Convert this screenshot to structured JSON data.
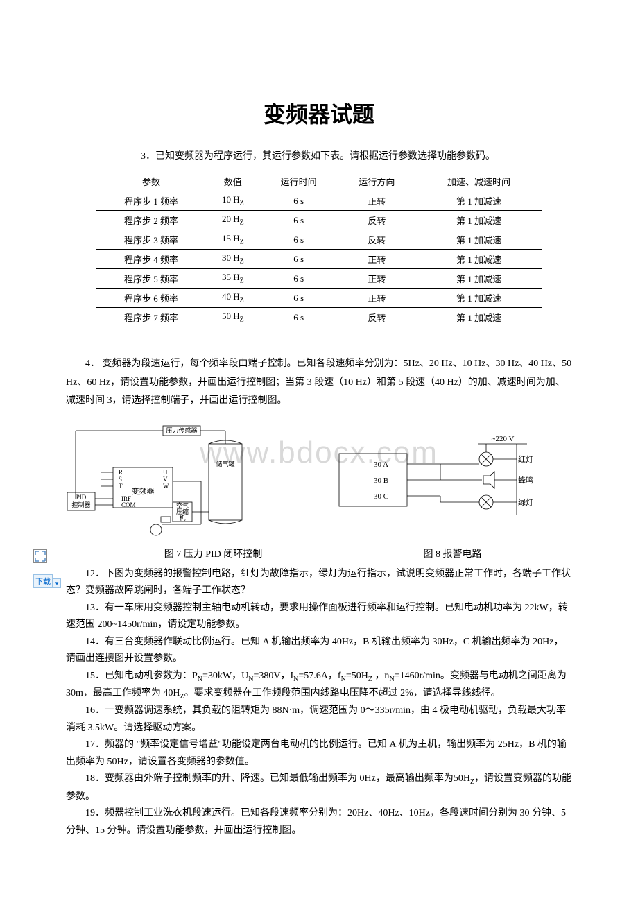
{
  "title": "变频器试题",
  "intro": "3．已知变频器为程序运行，其运行参数如下表。请根据运行参数选择功能参数码。",
  "table": {
    "headers": [
      "参数",
      "数值",
      "运行时间",
      "运行方向",
      "加速、减速时间"
    ],
    "rows": [
      [
        "程序步 1 频率",
        "10 Hz",
        "6 s",
        "正转",
        "第 1 加减速"
      ],
      [
        "程序步 2 频率",
        "20 Hz",
        "6 s",
        "反转",
        "第 1 加减速"
      ],
      [
        "程序步 3 频率",
        "15 Hz",
        "6 s",
        "反转",
        "第 1 加减速"
      ],
      [
        "程序步 4 频率",
        "30 Hz",
        "6 s",
        "正转",
        "第 1 加减速"
      ],
      [
        "程序步 5 频率",
        "35 Hz",
        "6 s",
        "正转",
        "第 1 加减速"
      ],
      [
        "程序步 6 频率",
        "40 Hz",
        "6 s",
        "正转",
        "第 1 加减速"
      ],
      [
        "程序步 7 频率",
        "50 Hz",
        "6 s",
        "反转",
        "第 1 加减速"
      ]
    ]
  },
  "q4": "4．  变频器为段速运行，每个频率段由端子控制。已知各段速频率分别为：5Hz、20 Hz、10 Hz、30 Hz、40 Hz、50 Hz、60 Hz，请设置功能参数，并画出运行控制图；当第 3 段速（10 Hz）和第 5 段速（40 Hz）的加、减速时间为加、减速时间 3，请选择控制端子，并画出运行控制图。",
  "watermark": "www.bdocx.com",
  "fig7": {
    "caption": "图 7  压力 PID 闭环控制",
    "labels": {
      "sensor": "压力传感器",
      "tank": "储气罐",
      "r": "R",
      "s": "S",
      "t": "T",
      "u": "U",
      "v": "V",
      "w": "W",
      "pid1": "PID",
      "pid2": "控制器",
      "vfd": "变频器",
      "irf": "IRF",
      "com": "COM",
      "comp1": "空气",
      "comp2": "压缩",
      "comp3": "机",
      "m": "M"
    }
  },
  "fig8": {
    "caption": "图 8    报警电路",
    "labels": {
      "v220": "~220 V",
      "red": "红灯",
      "buzz": "蜂鸣",
      "green": "绿灯",
      "t30a": "30 A",
      "t30b": "30 B",
      "t30c": "30 C"
    }
  },
  "questions": {
    "q12": "12．下图为变频器的报警控制电路，红灯为故障指示，绿灯为运行指示，试说明变频器正常工作时，各端子工作状态？变频器故障跳闸时，各端子工作状态？",
    "q13": "13．有一车床用变频器控制主轴电动机转动，要求用操作面板进行频率和运行控制。已知电动机功率为 22kW，转速范围 200~1450r/min，请设定功能参数。",
    "q14": "14．有三台变频器作联动比例运行。已知 A 机输出频率为 40Hz，B 机输出频率为 30Hz，C 机输出频率为 20Hz，请画出连接图并设置参数。",
    "q15a": "15．已知电动机参数为：P",
    "q15b": "=30kW，U",
    "q15c": "=380V，I",
    "q15d": "=57.6A，f",
    "q15e": "=50H",
    "q15f": " ，n",
    "q15g": "=1460r/min。变频器与电动机之间距离为 30m，最高工作频率为 40H",
    "q15h": "。要求变频器在工作频段范围内线路电压降不超过 2%，请选择导线线径。",
    "q16": "16．一变频器调速系统，其负载的阻转矩为 88N·m，调速范围为 0～335r/min，由 4 极电动机驱动，负载最大功率消耗 3.5kW。请选择驱动方案。",
    "q17": "17．频器的 \"频率设定信号增益\"功能设定两台电动机的比例运行。已知 A 机为主机，输出频率为 25Hz，B 机的输出频率为 50Hz，请设置各变频器的参数值。",
    "q18a": "18．变频器由外端子控制频率的升、降速。已知最低输出频率为 0Hz，最高输出频率为50H",
    "q18b": "，请设置变频器的功能参数。",
    "q19": "19．频器控制工业洗衣机段速运行。已知各段速频率分别为：20Hz、40Hz、10Hz，各段速时间分别为 30 分钟、5 分钟、15 分钟。请设置功能参数，并画出运行控制图。",
    "subN": "N",
    "subZ": "Z"
  },
  "sidebar": {
    "download": "下载"
  }
}
